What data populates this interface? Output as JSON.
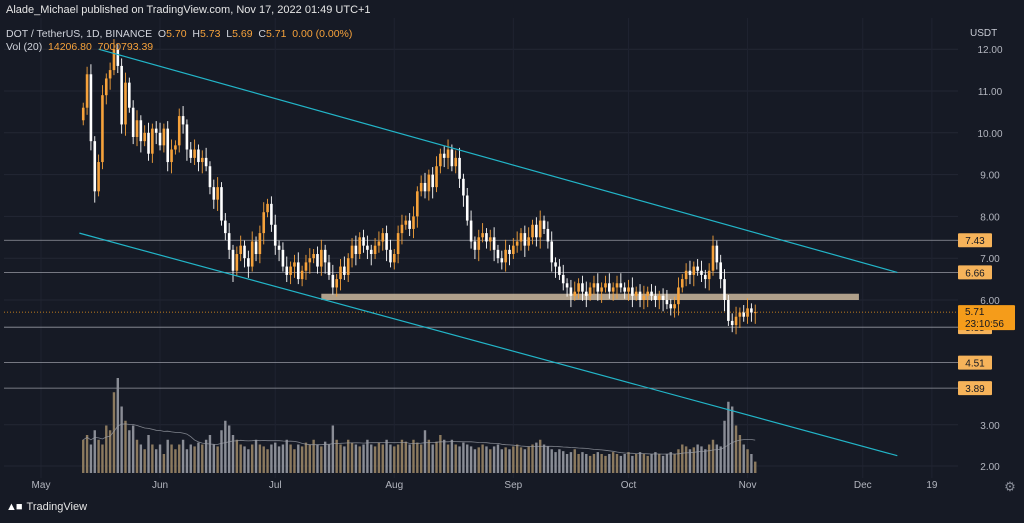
{
  "header": {
    "publisher": "Alade_Michael published on TradingView.com, Nov 17, 2022 01:49 UTC+1",
    "symbol": "DOT / TetherUS, 1D, BINANCE",
    "open_label": "O",
    "open": "5.70",
    "high_label": "H",
    "high": "5.73",
    "low_label": "L",
    "low": "5.69",
    "close_label": "C",
    "close": "5.71",
    "change": "0.00 (0.00%)",
    "vol_label": "Vol (20)",
    "vol_value": "14206.80",
    "vol_ma": "7000793.39"
  },
  "footer": {
    "brand": "TradingView"
  },
  "colors": {
    "background": "#161a25",
    "up": "#f6a23b",
    "down": "#ffffff",
    "channel": "#22b5c8",
    "zone": "#cbb99e",
    "level_line": "#9598a1",
    "price_tag": "#f6b35a",
    "current_tag": "#f59c1a"
  },
  "chart_data": {
    "type": "candlestick",
    "currency": "USDT",
    "price_ticks": [
      "12.00",
      "11.00",
      "10.00",
      "9.00",
      "8.00",
      "7.00",
      "6.00",
      "3.00",
      "2.00"
    ],
    "month_ticks": [
      "May",
      "Jun",
      "Jul",
      "Aug",
      "Sep",
      "Oct",
      "Nov",
      "Dec",
      "19"
    ],
    "levels": [
      "7.43",
      "6.66",
      "5.35",
      "4.51",
      "3.89"
    ],
    "current_price": "5.71",
    "countdown": "23:10:56",
    "support_zone": [
      6.0,
      6.15
    ],
    "channel_upper": [
      {
        "date": "2022-05-16",
        "price": 12.0
      },
      {
        "date": "2022-12-10",
        "price": 6.66
      }
    ],
    "channel_lower": [
      {
        "date": "2022-05-11",
        "price": 7.6
      },
      {
        "date": "2022-12-10",
        "price": 2.25
      }
    ],
    "closes": [
      10.6,
      11.4,
      9.8,
      8.6,
      9.3,
      10.9,
      11.3,
      11.5,
      12.0,
      11.6,
      10.2,
      11.2,
      10.6,
      9.9,
      10.3,
      9.8,
      10.0,
      9.5,
      10.1,
      10.0,
      9.7,
      10.1,
      9.3,
      9.6,
      9.7,
      10.4,
      10.2,
      9.6,
      9.4,
      9.6,
      9.3,
      9.4,
      9.2,
      8.7,
      8.4,
      8.7,
      7.9,
      7.6,
      7.2,
      6.7,
      7.1,
      7.3,
      7.0,
      6.8,
      7.4,
      7.1,
      7.6,
      8.1,
      8.3,
      7.8,
      7.3,
      7.2,
      6.8,
      6.6,
      6.8,
      6.9,
      6.5,
      6.7,
      6.9,
      7.0,
      7.1,
      6.8,
      7.2,
      6.9,
      6.6,
      6.3,
      6.5,
      6.8,
      6.6,
      7.0,
      7.3,
      7.1,
      7.5,
      7.3,
      7.2,
      7.1,
      7.3,
      7.4,
      7.6,
      7.2,
      6.9,
      7.1,
      7.6,
      7.8,
      7.9,
      7.7,
      8.0,
      8.6,
      8.8,
      8.6,
      9.0,
      8.7,
      9.2,
      9.5,
      9.4,
      9.6,
      9.2,
      9.4,
      8.9,
      8.5,
      7.9,
      7.4,
      7.2,
      7.5,
      7.6,
      7.4,
      7.5,
      7.2,
      7.0,
      6.9,
      7.2,
      7.1,
      7.3,
      7.4,
      7.6,
      7.3,
      7.5,
      7.8,
      7.5,
      7.9,
      7.7,
      7.4,
      6.9,
      6.8,
      6.6,
      6.4,
      6.3,
      6.1,
      6.2,
      6.4,
      6.2,
      6.1,
      6.3,
      6.4,
      6.2,
      6.3,
      6.4,
      6.2,
      6.3,
      6.4,
      6.3,
      6.2,
      6.3,
      6.1,
      6.2,
      6.0,
      6.1,
      6.2,
      6.1,
      6.0,
      6.1,
      6.0,
      5.9,
      5.8,
      5.9,
      6.3,
      6.5,
      6.7,
      6.6,
      6.8,
      6.7,
      6.6,
      6.5,
      6.7,
      7.3,
      6.9,
      6.5,
      6.0,
      5.5,
      5.4,
      5.6,
      5.7,
      5.6,
      5.8,
      5.7,
      5.71
    ],
    "volumes_rel": [
      0.35,
      0.4,
      0.3,
      0.45,
      0.35,
      0.3,
      0.5,
      0.45,
      0.85,
      1.0,
      0.7,
      0.55,
      0.45,
      0.5,
      0.35,
      0.3,
      0.25,
      0.4,
      0.3,
      0.25,
      0.3,
      0.2,
      0.35,
      0.3,
      0.25,
      0.3,
      0.35,
      0.25,
      0.3,
      0.28,
      0.32,
      0.3,
      0.35,
      0.4,
      0.3,
      0.28,
      0.45,
      0.55,
      0.5,
      0.4,
      0.35,
      0.3,
      0.28,
      0.25,
      0.3,
      0.35,
      0.3,
      0.28,
      0.25,
      0.3,
      0.32,
      0.28,
      0.3,
      0.35,
      0.3,
      0.25,
      0.3,
      0.28,
      0.32,
      0.3,
      0.35,
      0.3,
      0.28,
      0.33,
      0.3,
      0.5,
      0.35,
      0.3,
      0.28,
      0.35,
      0.32,
      0.3,
      0.28,
      0.3,
      0.35,
      0.3,
      0.28,
      0.32,
      0.3,
      0.35,
      0.3,
      0.28,
      0.3,
      0.35,
      0.33,
      0.3,
      0.35,
      0.32,
      0.3,
      0.45,
      0.35,
      0.3,
      0.33,
      0.4,
      0.35,
      0.3,
      0.35,
      0.3,
      0.28,
      0.32,
      0.3,
      0.28,
      0.25,
      0.27,
      0.3,
      0.28,
      0.25,
      0.28,
      0.3,
      0.25,
      0.27,
      0.25,
      0.28,
      0.3,
      0.27,
      0.25,
      0.28,
      0.3,
      0.32,
      0.35,
      0.3,
      0.28,
      0.25,
      0.22,
      0.25,
      0.23,
      0.2,
      0.22,
      0.25,
      0.2,
      0.22,
      0.2,
      0.18,
      0.2,
      0.22,
      0.2,
      0.18,
      0.2,
      0.22,
      0.2,
      0.18,
      0.2,
      0.22,
      0.18,
      0.2,
      0.22,
      0.2,
      0.18,
      0.2,
      0.22,
      0.2,
      0.18,
      0.2,
      0.22,
      0.2,
      0.25,
      0.3,
      0.28,
      0.25,
      0.27,
      0.3,
      0.28,
      0.25,
      0.3,
      0.35,
      0.3,
      0.28,
      0.55,
      0.75,
      0.7,
      0.5,
      0.4,
      0.3,
      0.25,
      0.2,
      0.12
    ]
  }
}
